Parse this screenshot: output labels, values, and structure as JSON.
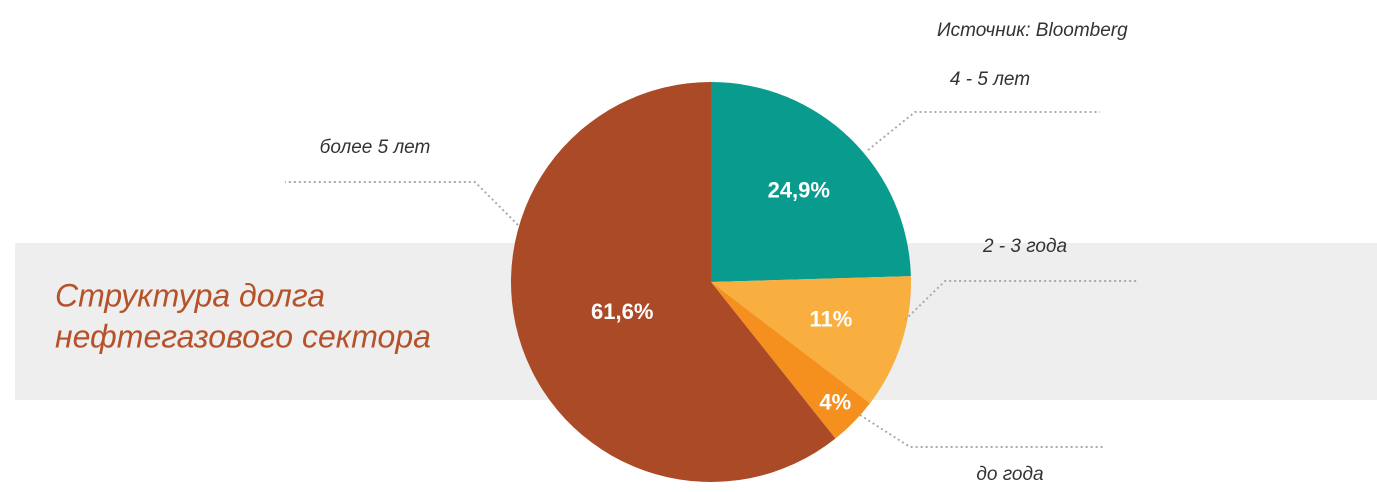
{
  "chart_data": {
    "type": "pie",
    "title": [
      "Структура долга",
      "нефтегазового сектора"
    ],
    "source": "Источник: Bloomberg",
    "categories": [
      "4 - 5 лет",
      "2 - 3 года",
      "до года",
      "более 5 лет"
    ],
    "values": [
      24.9,
      11,
      4,
      61.6
    ],
    "value_labels": [
      "24,9%",
      "11%",
      "4%",
      "61,6%"
    ],
    "colors": [
      "#0a9b8f",
      "#f9ae40",
      "#f5901e",
      "#ab4a26"
    ]
  }
}
